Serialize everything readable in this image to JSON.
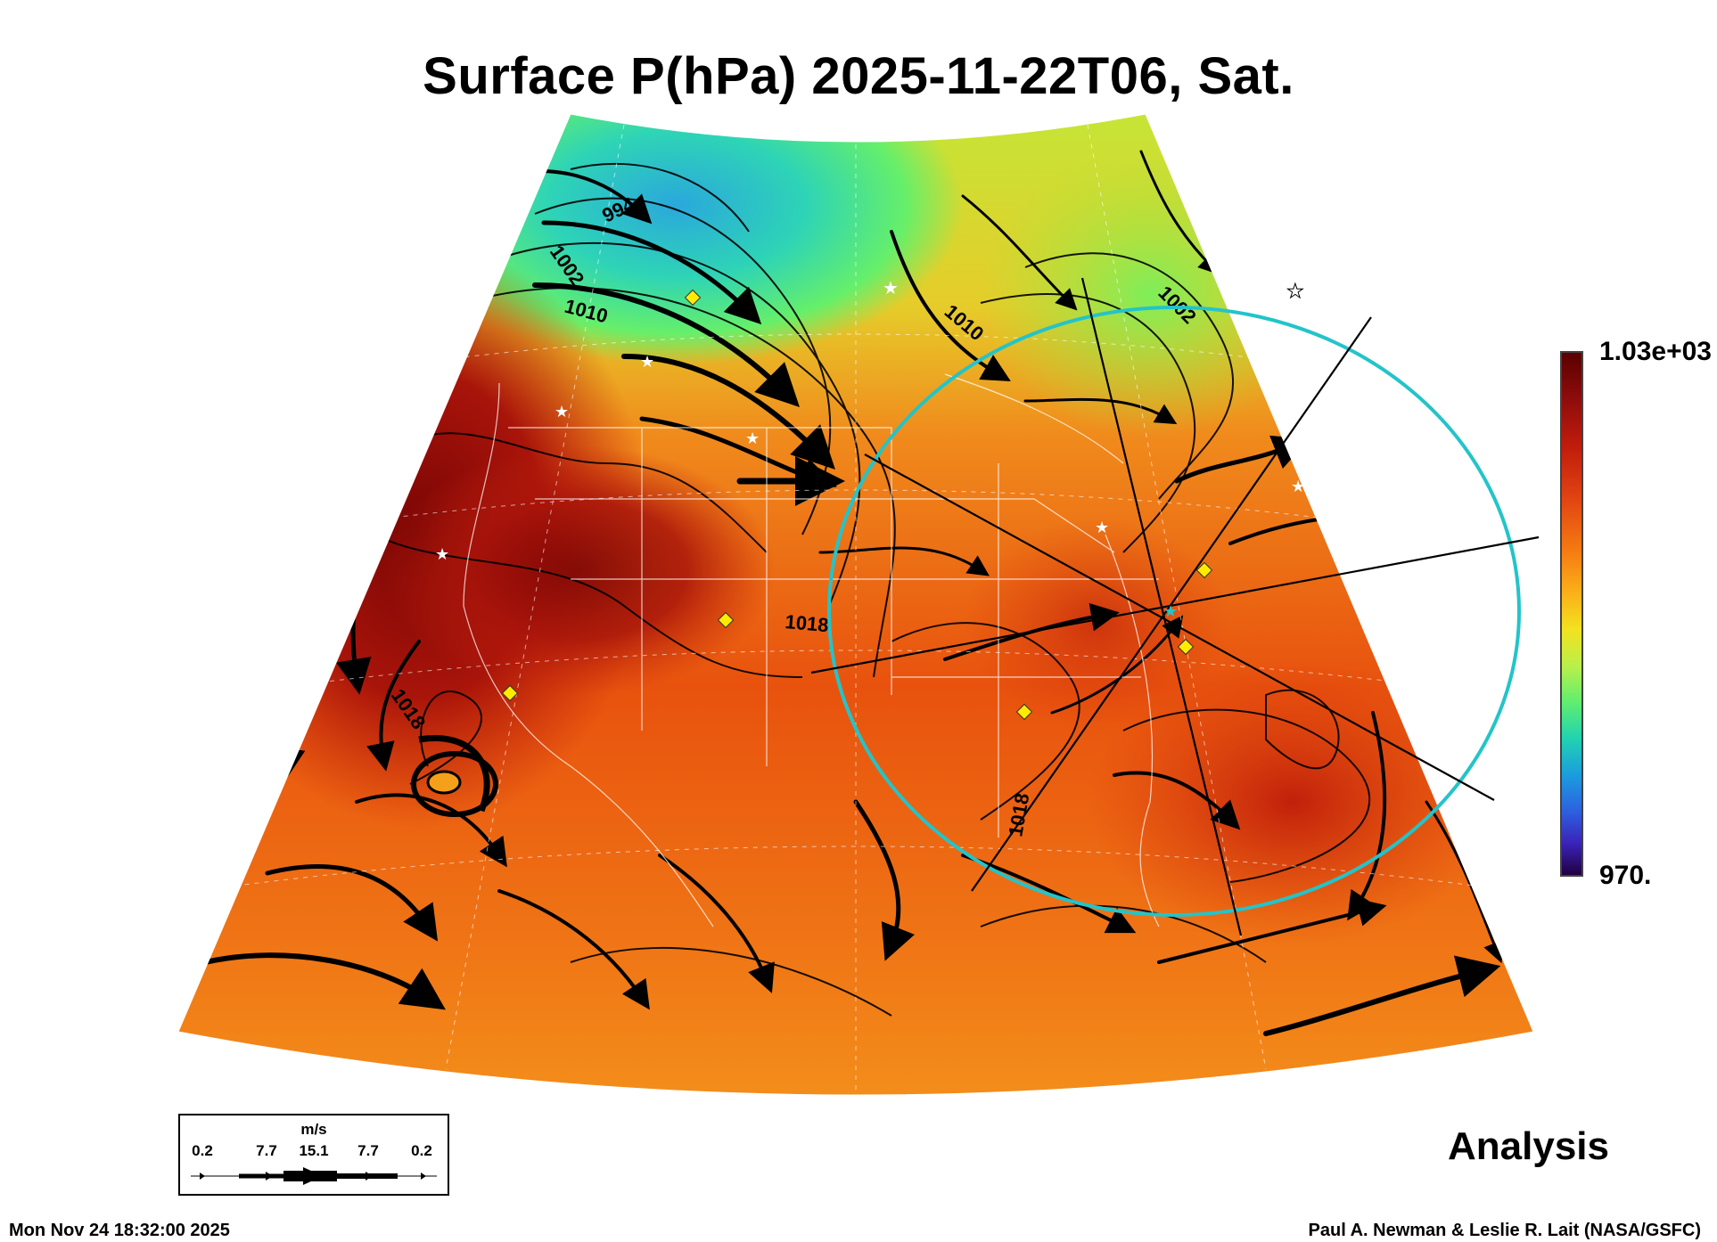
{
  "title": "Surface P(hPa) 2025-11-22T06, Sat.",
  "colorbar": {
    "max_label": "1.03e+03",
    "min_label": "970.",
    "colors": [
      "#5a0000",
      "#c11c0c",
      "#f57b12",
      "#f3e21f",
      "#5fee70",
      "#1b9cde",
      "#3b22b8"
    ]
  },
  "contour_labels": [
    "994",
    "1002",
    "1010",
    "1010",
    "1018",
    "1018",
    "1018",
    "1002"
  ],
  "wind_scale": {
    "unit": "m/s",
    "ticks": [
      "0.2",
      "7.7",
      "15.1",
      "7.7",
      "0.2"
    ]
  },
  "analysis_label": "Analysis",
  "timestamp": "Mon Nov 24 18:32:00 2025",
  "credit": "Paul A. Newman & Leslie R. Lait (NASA/GSFC)"
}
